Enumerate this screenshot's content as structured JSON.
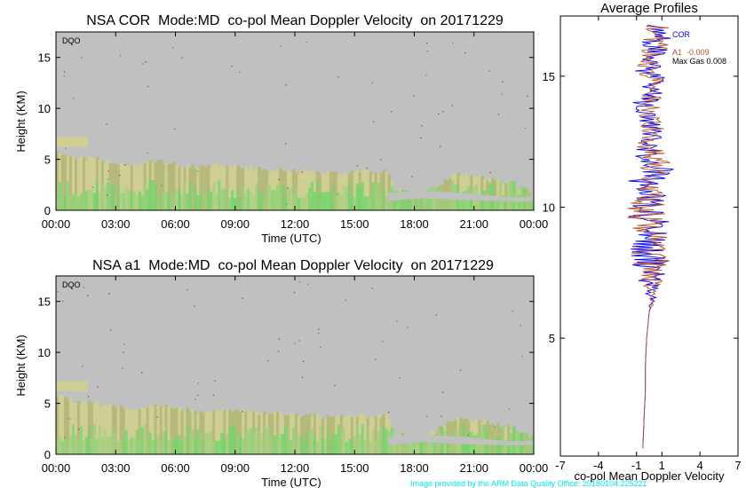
{
  "colors": {
    "background": "#c0c0c0",
    "echo_light": "#cfcf95",
    "echo_dark": "#b5b97a",
    "echo_green": "#9fcf7d",
    "echo_bright_green": "#6fd66a",
    "cor_line": "#0000ff",
    "a1_line": "#b5542a",
    "credit_text": "#00e5e5"
  },
  "top_panel": {
    "title": "NSA COR  Mode:MD  co-pol Mean Doppler Velocity  on 20171229",
    "tag": "DQO",
    "ylabel": "Height (KM)",
    "xlabel": "Time (UTC)"
  },
  "bottom_panel": {
    "title": "NSA a1  Mode:MD  co-pol Mean Doppler Velocity  on 20171229",
    "tag": "DQO",
    "ylabel": "Height (KM)",
    "xlabel": "Time (UTC)"
  },
  "profile_panel": {
    "title": "Average Profiles",
    "xlabel": "co-pol Mean Doppler Velocity",
    "legend": {
      "cor": "COR",
      "a1": "A1  -0.009",
      "maxgas": "Max Gas 0.008"
    }
  },
  "credit": "Image provided by the ARM Data Quality Office: 20180104.225221",
  "chart_data": [
    {
      "type": "heatmap",
      "title": "NSA COR  Mode:MD  co-pol Mean Doppler Velocity  on 20171229",
      "xlabel": "Time (UTC)",
      "ylabel": "Height (KM)",
      "x_ticks": [
        "00:00",
        "03:00",
        "06:00",
        "09:00",
        "12:00",
        "15:00",
        "18:00",
        "21:00",
        "00:00"
      ],
      "x_range_hours": [
        0,
        24
      ],
      "y_ticks": [
        0,
        5,
        10,
        15
      ],
      "ylim": [
        0,
        17.5
      ],
      "echo_top_km": {
        "hours": [
          0,
          1,
          2,
          3,
          4,
          5,
          6,
          7,
          8,
          9,
          10,
          11,
          12,
          13,
          14,
          15,
          16,
          16.7,
          17,
          18,
          19,
          20,
          21,
          22,
          23,
          24
        ],
        "top": [
          5.8,
          5.2,
          5.0,
          4.7,
          4.4,
          4.8,
          4.6,
          4.2,
          4.4,
          4.3,
          4.1,
          4.0,
          3.8,
          3.8,
          3.6,
          3.9,
          3.7,
          3.9,
          2.0,
          1.7,
          2.2,
          3.5,
          3.3,
          3.0,
          2.6,
          1.6
        ]
      },
      "upper_layer_km": {
        "hours": [
          0,
          1.6
        ],
        "bottom": 6.2,
        "top": 7.2
      }
    },
    {
      "type": "heatmap",
      "title": "NSA a1  Mode:MD  co-pol Mean Doppler Velocity  on 20171229",
      "xlabel": "Time (UTC)",
      "ylabel": "Height (KM)",
      "x_ticks": [
        "00:00",
        "03:00",
        "06:00",
        "09:00",
        "12:00",
        "15:00",
        "18:00",
        "21:00",
        "00:00"
      ],
      "x_range_hours": [
        0,
        24
      ],
      "y_ticks": [
        0,
        5,
        10,
        15
      ],
      "ylim": [
        0,
        17.5
      ],
      "echo_top_km": {
        "hours": [
          0,
          1,
          2,
          3,
          4,
          5,
          6,
          7,
          8,
          9,
          10,
          11,
          12,
          13,
          14,
          15,
          16,
          16.7,
          17,
          18,
          19,
          20,
          21,
          22,
          23,
          24
        ],
        "top": [
          5.8,
          5.2,
          5.0,
          4.7,
          4.4,
          4.8,
          4.6,
          4.2,
          4.4,
          4.3,
          4.1,
          4.0,
          3.8,
          3.8,
          3.6,
          3.9,
          3.7,
          3.9,
          2.0,
          1.7,
          2.2,
          3.5,
          3.3,
          3.0,
          2.6,
          1.6
        ]
      },
      "upper_layer_km": {
        "hours": [
          0,
          1.6
        ],
        "bottom": 6.2,
        "top": 7.2
      }
    },
    {
      "type": "line",
      "title": "Average Profiles",
      "xlabel": "co-pol Mean Doppler Velocity",
      "x_ticks": [
        -7,
        -4,
        -1,
        1,
        4,
        7
      ],
      "xlim": [
        -7,
        7
      ],
      "y_ticks": [
        5,
        10,
        15
      ],
      "ylim": [
        0.5,
        17.3
      ],
      "series": [
        {
          "name": "COR",
          "height_km": [
            0.8,
            2,
            3,
            4,
            5,
            6,
            6.5,
            7,
            7.5,
            8,
            8.5,
            9,
            9.5,
            10,
            10.5,
            11,
            11.5,
            12,
            12.5,
            13,
            13.5,
            14,
            14.5,
            15,
            15.5,
            16,
            16.5,
            17
          ],
          "velocity": [
            -0.5,
            -0.4,
            -0.3,
            -0.3,
            -0.2,
            0.0,
            0.3,
            0.1,
            0.0,
            0.2,
            -0.4,
            0.3,
            -0.2,
            0.1,
            0.4,
            -0.3,
            0.5,
            0.2,
            -0.2,
            0.4,
            0.1,
            -0.3,
            0.5,
            0.2,
            -0.1,
            0.4,
            0.6,
            0.8
          ],
          "spread": [
            0,
            0,
            0,
            0,
            0,
            0,
            0.3,
            0.8,
            1.5,
            1.8,
            1.6,
            1.2,
            1.8,
            1.5,
            1.2,
            1.4,
            1.6,
            1.3,
            1.0,
            1.2,
            1.1,
            1.0,
            1.0,
            1.2,
            1.2,
            1.3,
            1.1,
            1.0
          ]
        },
        {
          "name": "A1  -0.009",
          "height_km": [
            0.8,
            2,
            3,
            4,
            5,
            6,
            6.5,
            7,
            7.5,
            8,
            8.5,
            9,
            9.5,
            10,
            10.5,
            11,
            11.5,
            12,
            12.5,
            13,
            13.5,
            14,
            14.5,
            15,
            15.5,
            16,
            16.5,
            17
          ],
          "velocity": [
            -0.5,
            -0.4,
            -0.3,
            -0.3,
            -0.2,
            0.0,
            0.3,
            0.2,
            0.1,
            0.1,
            -0.3,
            0.2,
            -0.1,
            0.0,
            0.3,
            -0.2,
            0.4,
            0.3,
            -0.1,
            0.3,
            0.2,
            -0.2,
            0.4,
            0.3,
            0.0,
            0.5,
            0.5,
            0.7
          ],
          "spread": [
            0,
            0,
            0,
            0,
            0,
            0,
            0.3,
            0.8,
            1.3,
            1.6,
            1.5,
            1.4,
            1.6,
            1.9,
            1.3,
            1.2,
            1.4,
            1.2,
            1.0,
            1.1,
            1.0,
            1.0,
            0.9,
            1.1,
            1.1,
            1.2,
            1.0,
            0.9
          ]
        }
      ]
    }
  ]
}
